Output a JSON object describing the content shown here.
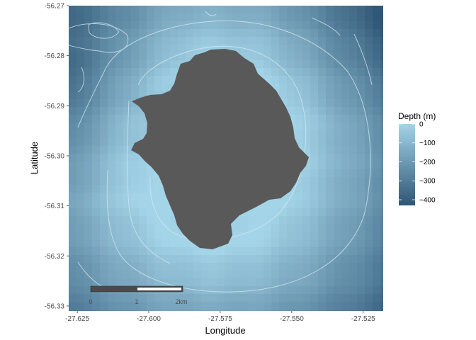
{
  "chart_data": {
    "type": "heatmap",
    "title": "",
    "xlabel": "Longitude",
    "ylabel": "Latitude",
    "xlim": [
      -27.628,
      -27.518
    ],
    "ylim": [
      -56.331,
      -56.27
    ],
    "x_ticks": [
      -27.625,
      -27.6,
      -27.575,
      -27.55,
      -27.525
    ],
    "x_tick_labels": [
      "-27.625",
      "-27.600",
      "-27.575",
      "-27.550",
      "-27.525"
    ],
    "y_ticks": [
      -56.27,
      -56.28,
      -56.29,
      -56.3,
      -56.31,
      -56.32,
      -56.33
    ],
    "y_tick_labels": [
      "-56.27",
      "-56.28",
      "-56.29",
      "-56.30",
      "-56.31",
      "-56.32",
      "-56.33"
    ],
    "grid": false,
    "fill_variable": "Depth (m)",
    "island_center": [
      -27.578,
      -56.3
    ],
    "depth_range": [
      -430,
      0
    ],
    "legend": {
      "title": "Depth (m)",
      "position": "right",
      "breaks": [
        0,
        -100,
        -200,
        -300,
        -400
      ],
      "labels": [
        "0",
        "−100",
        "−200",
        "−300",
        "−400"
      ],
      "color_low": "#2f5675",
      "color_high": "#a4d4e8"
    },
    "island_color": "#595959",
    "contour_color": "#d4e9f3",
    "scale_bar": {
      "labels": [
        "0",
        "1",
        "2km"
      ]
    }
  }
}
